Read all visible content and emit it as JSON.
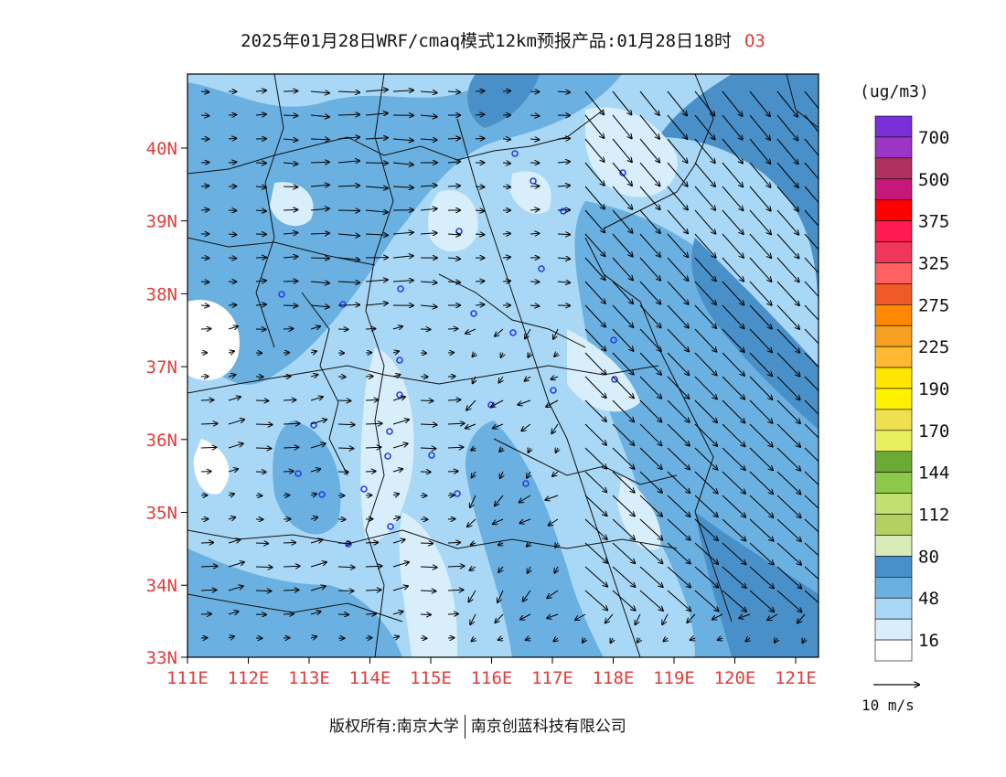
{
  "title": {
    "main": "2025年01月28日WRF/cmaq模式12km预报产品:01月28日18时",
    "species": "O3"
  },
  "map": {
    "lat_labels": [
      "40N",
      "39N",
      "38N",
      "37N",
      "36N",
      "35N",
      "34N",
      "33N"
    ],
    "lon_labels": [
      "111E",
      "112E",
      "113E",
      "114E",
      "115E",
      "116E",
      "117E",
      "118E",
      "119E",
      "120E",
      "121E"
    ],
    "label_color": "#e23b3b"
  },
  "colorbar": {
    "unit": "(ug/m3)",
    "labels": [
      "700",
      "500",
      "375",
      "325",
      "275",
      "225",
      "190",
      "170",
      "144",
      "112",
      "80",
      "48",
      "16"
    ],
    "colors_top_to_bottom": [
      "#7b2fd9",
      "#9a35c6",
      "#b0305e",
      "#c8177a",
      "#ff0000",
      "#ff1a50",
      "#f0365a",
      "#ff6060",
      "#f05a28",
      "#ff8800",
      "#f5a020",
      "#ffb830",
      "#ffe600",
      "#fff200",
      "#f0e050",
      "#e8f060",
      "#6aaa35",
      "#8cc84a",
      "#c0e070",
      "#b4d060",
      "#d8ecb8",
      "#4a90c8",
      "#6ab0e0",
      "#a8d8f5",
      "#d8eefa",
      "#ffffff"
    ]
  },
  "vector_legend": {
    "label": "10 m/s"
  },
  "credit": {
    "left": "版权所有:南京大学",
    "right": "南京创蓝科技有限公司"
  }
}
